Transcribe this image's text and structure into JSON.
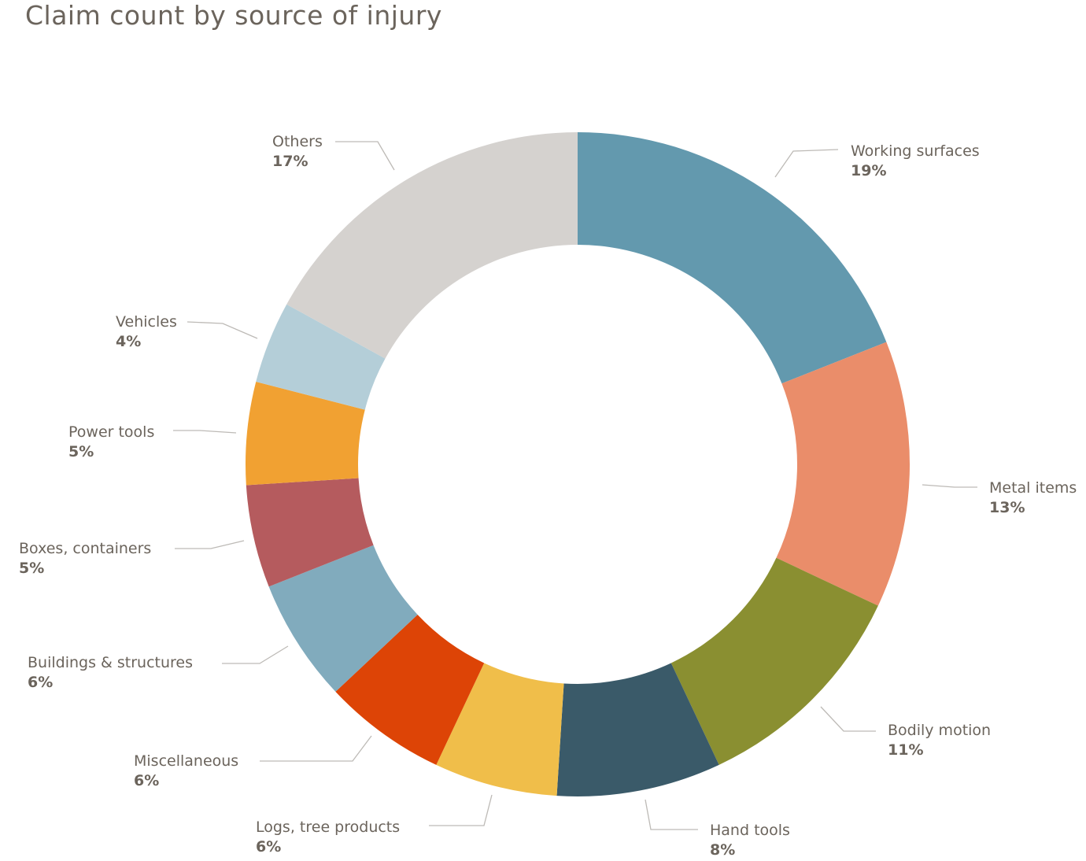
{
  "chart_data": {
    "type": "pie",
    "donut": true,
    "title": "Claim count by source of injury",
    "start": "top",
    "direction": "clockwise",
    "legend": "none",
    "data_labels": "outside with leader lines",
    "slices": [
      {
        "label": "Working surfaces",
        "value": 19,
        "pct_label": "19%",
        "color": "#6399ae"
      },
      {
        "label": "Metal items",
        "value": 13,
        "pct_label": "13%",
        "color": "#ea8d6a"
      },
      {
        "label": "Bodily motion",
        "value": 11,
        "pct_label": "11%",
        "color": "#8a8f31"
      },
      {
        "label": "Hand tools",
        "value": 8,
        "pct_label": "8%",
        "color": "#3a5a69"
      },
      {
        "label": "Logs, tree products",
        "value": 6,
        "pct_label": "6%",
        "color": "#f0be4a"
      },
      {
        "label": "Miscellaneous",
        "value": 6,
        "pct_label": "6%",
        "color": "#dd4406"
      },
      {
        "label": "Buildings & structures",
        "value": 6,
        "pct_label": "6%",
        "color": "#81abbd"
      },
      {
        "label": "Boxes, containers",
        "value": 5,
        "pct_label": "5%",
        "color": "#b55b5e"
      },
      {
        "label": "Power tools",
        "value": 5,
        "pct_label": "5%",
        "color": "#f1a132"
      },
      {
        "label": "Vehicles",
        "value": 4,
        "pct_label": "4%",
        "color": "#b4ced8"
      },
      {
        "label": "Others",
        "value": 17,
        "pct_label": "17%",
        "color": "#d5d2cf"
      }
    ]
  }
}
